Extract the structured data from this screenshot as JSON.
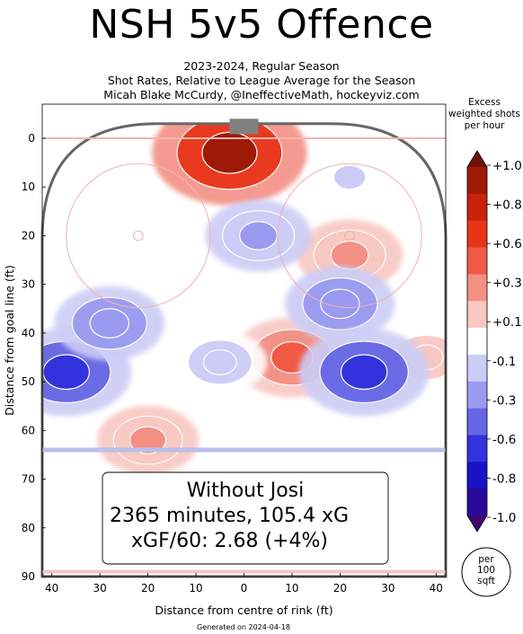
{
  "chart_data": {
    "type": "heatmap",
    "title": "NSH 5v5 Offence",
    "subtitle_lines": [
      "2023-2024, Regular Season",
      "Shot Rates, Relative to League Average for the Season",
      "Micah Blake McCurdy, @IneffectiveMath, hockeyviz.com"
    ],
    "xlabel": "Distance from centre of rink (ft)",
    "ylabel": "Distance from goal line (ft)",
    "xlim": [
      -42,
      42
    ],
    "ylim": [
      90,
      -7
    ],
    "x_ticks": [
      "40",
      "30",
      "20",
      "10",
      "0",
      "10",
      "20",
      "30",
      "40"
    ],
    "x_tick_values": [
      -40,
      -30,
      -20,
      -10,
      0,
      10,
      20,
      30,
      40
    ],
    "y_ticks": [
      0,
      10,
      20,
      30,
      40,
      50,
      60,
      70,
      80,
      90
    ],
    "colorbar": {
      "title_lines": [
        "Excess",
        "weighted shots",
        "per hour"
      ],
      "tick_labels": [
        "+1.0",
        "+0.8",
        "+0.6",
        "+0.3",
        "+0.1",
        "-0.1",
        "-0.3",
        "-0.6",
        "-0.8",
        "-1.0"
      ],
      "colors": [
        "#6e1204",
        "#9e1a07",
        "#c8220a",
        "#e8351a",
        "#f05a44",
        "#f39084",
        "#f8c8c2",
        "#ffffff",
        "#ccccf6",
        "#9a9af0",
        "#6666e6",
        "#3333dd",
        "#1a12c6",
        "#2a0a9a",
        "#3a0a70"
      ]
    },
    "unit_label_lines": [
      "per",
      "100",
      "sqft"
    ],
    "annotation_lines": [
      "Without Josi",
      "2365 minutes, 105.4 xG",
      "xGF/60: 2.68 (+4%)"
    ],
    "regions": [
      {
        "x": -3,
        "y": 3,
        "value": 0.9
      },
      {
        "x": 10,
        "y": 45,
        "value": 0.45
      },
      {
        "x": 22,
        "y": 24,
        "value": 0.3
      },
      {
        "x": -20,
        "y": 62,
        "value": 0.25
      },
      {
        "x": 38,
        "y": 45,
        "value": 0.15
      },
      {
        "x": -37,
        "y": 48,
        "value": -0.6
      },
      {
        "x": -28,
        "y": 38,
        "value": -0.35
      },
      {
        "x": 20,
        "y": 34,
        "value": -0.35
      },
      {
        "x": 25,
        "y": 48,
        "value": -0.6
      },
      {
        "x": 3,
        "y": 20,
        "value": -0.3
      },
      {
        "x": -5,
        "y": 46,
        "value": -0.15
      },
      {
        "x": 22,
        "y": 8,
        "value": -0.1
      }
    ],
    "footer": "Generated on 2024-04-18"
  }
}
